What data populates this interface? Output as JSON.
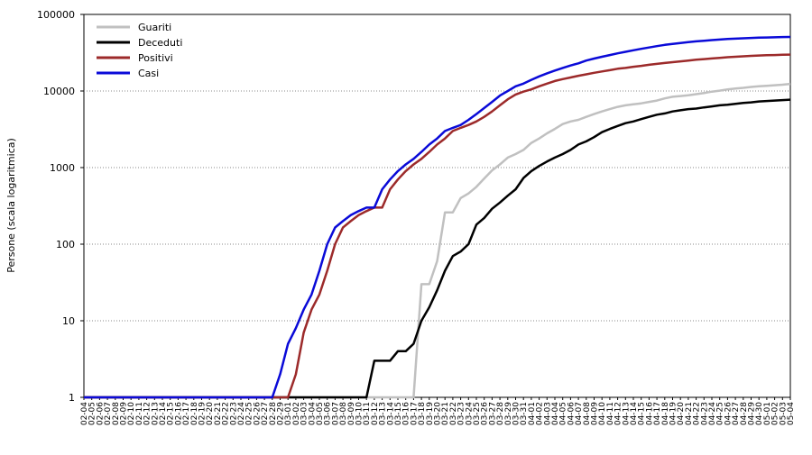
{
  "chart_data": {
    "type": "line",
    "ylabel": "Persone (scala logaritmica)",
    "yscale": "log",
    "ylim": [
      1,
      100000
    ],
    "yticks": [
      "1",
      "10",
      "100",
      "1000",
      "10000",
      "100000"
    ],
    "grid": "horizontal dotted",
    "legend_position": "top-left",
    "x": [
      "02-04",
      "02-05",
      "02-06",
      "02-07",
      "02-08",
      "02-09",
      "02-10",
      "02-11",
      "02-12",
      "02-13",
      "02-14",
      "02-15",
      "02-16",
      "02-17",
      "02-18",
      "02-19",
      "02-20",
      "02-21",
      "02-22",
      "02-23",
      "02-24",
      "02-25",
      "02-26",
      "02-27",
      "02-28",
      "02-29",
      "03-01",
      "03-02",
      "03-03",
      "03-04",
      "03-05",
      "03-06",
      "03-07",
      "03-08",
      "03-09",
      "03-10",
      "03-11",
      "03-12",
      "03-13",
      "03-14",
      "03-15",
      "03-16",
      "03-17",
      "03-18",
      "03-19",
      "03-20",
      "03-21",
      "03-22",
      "03-23",
      "03-24",
      "03-25",
      "03-26",
      "03-27",
      "03-28",
      "03-29",
      "03-30",
      "03-31",
      "04-01",
      "04-02",
      "04-03",
      "04-04",
      "04-05",
      "04-06",
      "04-07",
      "04-08",
      "04-09",
      "04-10",
      "04-11",
      "04-12",
      "04-13",
      "04-14",
      "04-15",
      "04-16",
      "04-17",
      "04-18",
      "04-19",
      "04-20",
      "04-21",
      "04-22",
      "04-23",
      "04-24",
      "04-25",
      "04-26",
      "04-27",
      "04-28",
      "04-29",
      "04-30",
      "05-01",
      "05-02",
      "05-03",
      "05-04"
    ],
    "series": [
      {
        "name": "Guariti",
        "color": "#c0c0c0",
        "values": [
          1,
          1,
          1,
          1,
          1,
          1,
          1,
          1,
          1,
          1,
          1,
          1,
          1,
          1,
          1,
          1,
          1,
          1,
          1,
          1,
          1,
          1,
          1,
          1,
          1,
          1,
          1,
          1,
          1,
          1,
          1,
          1,
          1,
          1,
          1,
          1,
          1,
          1,
          1,
          1,
          1,
          1,
          1,
          30,
          30,
          60,
          260,
          260,
          400,
          460,
          560,
          720,
          920,
          1100,
          1350,
          1500,
          1700,
          2100,
          2400,
          2800,
          3200,
          3700,
          4000,
          4200,
          4600,
          5000,
          5400,
          5800,
          6200,
          6500,
          6700,
          6900,
          7200,
          7500,
          8000,
          8400,
          8600,
          8800,
          9100,
          9400,
          9800,
          10100,
          10500,
          10800,
          11000,
          11300,
          11500,
          11700,
          11900,
          12100,
          12400
        ]
      },
      {
        "name": "Deceduti",
        "color": "#000000",
        "values": [
          1,
          1,
          1,
          1,
          1,
          1,
          1,
          1,
          1,
          1,
          1,
          1,
          1,
          1,
          1,
          1,
          1,
          1,
          1,
          1,
          1,
          1,
          1,
          1,
          1,
          1,
          1,
          1,
          1,
          1,
          1,
          1,
          1,
          1,
          1,
          1,
          1,
          3,
          3,
          3,
          4,
          4,
          5,
          10,
          15,
          25,
          45,
          70,
          80,
          100,
          180,
          220,
          290,
          350,
          430,
          520,
          730,
          900,
          1050,
          1200,
          1350,
          1500,
          1700,
          2000,
          2200,
          2500,
          2900,
          3200,
          3500,
          3800,
          4000,
          4300,
          4600,
          4900,
          5100,
          5400,
          5600,
          5800,
          5900,
          6100,
          6300,
          6500,
          6600,
          6800,
          7000,
          7100,
          7300,
          7400,
          7500,
          7600,
          7700
        ]
      },
      {
        "name": "Positivi",
        "color": "#9c2a2a",
        "values": [
          1,
          1,
          1,
          1,
          1,
          1,
          1,
          1,
          1,
          1,
          1,
          1,
          1,
          1,
          1,
          1,
          1,
          1,
          1,
          1,
          1,
          1,
          1,
          1,
          1,
          1,
          1,
          2,
          7,
          14,
          22,
          45,
          100,
          165,
          200,
          240,
          270,
          300,
          300,
          520,
          700,
          900,
          1100,
          1300,
          1600,
          2000,
          2400,
          3000,
          3300,
          3600,
          4000,
          4600,
          5400,
          6500,
          7800,
          9000,
          9800,
          10500,
          11500,
          12500,
          13500,
          14300,
          15000,
          15800,
          16500,
          17300,
          18000,
          18700,
          19500,
          20000,
          20700,
          21300,
          22000,
          22600,
          23200,
          23800,
          24400,
          25000,
          25600,
          26100,
          26600,
          27100,
          27600,
          28000,
          28400,
          28800,
          29100,
          29300,
          29500,
          29700,
          29900
        ]
      },
      {
        "name": "Casi",
        "color": "#0a0ad8",
        "values": [
          1,
          1,
          1,
          1,
          1,
          1,
          1,
          1,
          1,
          1,
          1,
          1,
          1,
          1,
          1,
          1,
          1,
          1,
          1,
          1,
          1,
          1,
          1,
          1,
          1,
          2,
          5,
          8,
          14,
          22,
          45,
          100,
          165,
          200,
          240,
          270,
          300,
          300,
          520,
          700,
          900,
          1100,
          1300,
          1600,
          2000,
          2400,
          3000,
          3300,
          3600,
          4200,
          5000,
          6000,
          7200,
          8700,
          10000,
          11500,
          12500,
          14000,
          15500,
          17000,
          18500,
          20000,
          21500,
          23000,
          25000,
          26500,
          28000,
          29500,
          31000,
          32500,
          34000,
          35500,
          37000,
          38500,
          40000,
          41200,
          42400,
          43500,
          44500,
          45400,
          46200,
          47000,
          47700,
          48300,
          48800,
          49300,
          49700,
          50000,
          50300,
          50600,
          50800
        ]
      }
    ]
  }
}
